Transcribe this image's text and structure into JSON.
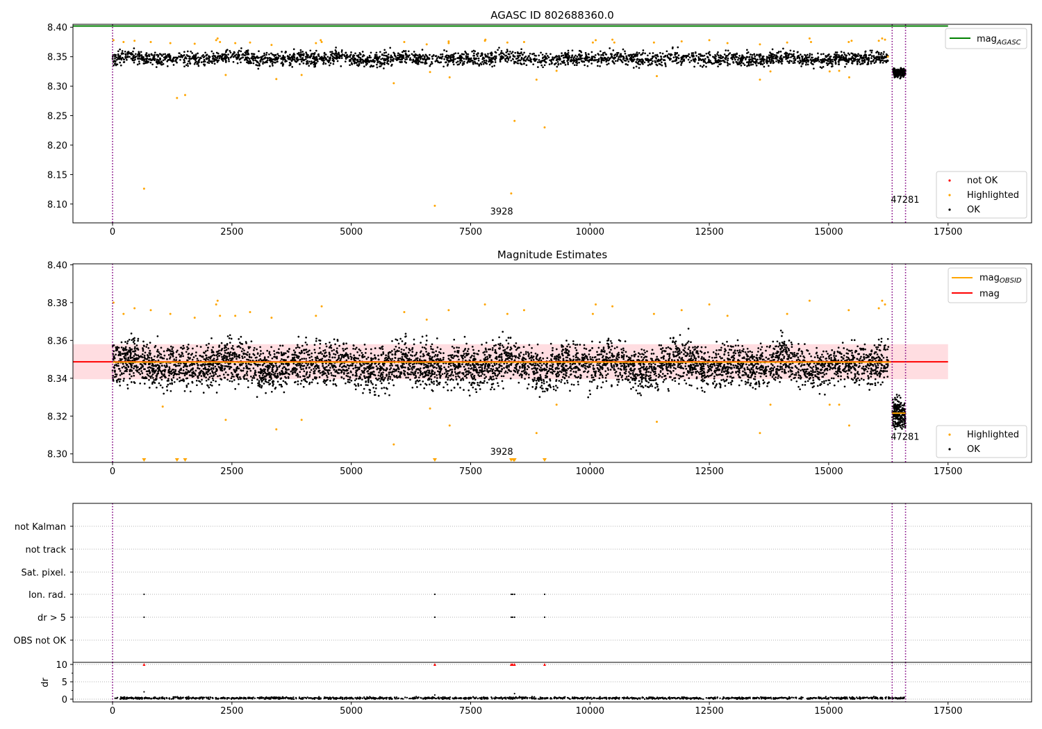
{
  "colors": {
    "ok": "#000000",
    "highlighted": "#ffa500",
    "not_ok": "#ff0000",
    "mag_agasc_line": "#008000",
    "mag_obsid_line": "#ffa500",
    "mag_line": "#ff0000",
    "mag_band": "#ffdde1",
    "obs_boundary": "#800080",
    "flag_grid": "#b0b0b0"
  },
  "chart_data": [
    {
      "type": "scatter",
      "title": "AGASC ID 802688360.0",
      "xlabel": "",
      "ylabel": "",
      "xlim": [
        -830,
        19250
      ],
      "ylim": [
        8.068,
        8.405
      ],
      "x_ticks": [
        "0",
        "2500",
        "5000",
        "7500",
        "10000",
        "12500",
        "15000",
        "17500"
      ],
      "x_tick_values": [
        0,
        2500,
        5000,
        7500,
        10000,
        12500,
        15000,
        17500
      ],
      "y_ticks": [
        "8.10",
        "8.15",
        "8.20",
        "8.25",
        "8.30",
        "8.35",
        "8.40"
      ],
      "y_tick_values": [
        8.1,
        8.15,
        8.2,
        8.25,
        8.3,
        8.35,
        8.4
      ],
      "legend_upper": {
        "position": "upper-right",
        "entries": [
          {
            "label": "mag",
            "subscript": "AGASC",
            "marker": "line",
            "color": "#008000"
          }
        ]
      },
      "legend_lower": {
        "position": "lower-right",
        "entries": [
          {
            "label": "not OK",
            "marker": "dot",
            "color": "#ff0000"
          },
          {
            "label": "Highlighted",
            "marker": "dot",
            "color": "#ffa500"
          },
          {
            "label": "OK",
            "marker": "dot",
            "color": "#000000"
          }
        ]
      },
      "hlines": [
        {
          "y": 8.402,
          "color": "#008000",
          "x_from": -830,
          "x_to": 17500
        }
      ],
      "vlines": [
        0,
        16330,
        16610
      ],
      "annotations": [
        {
          "text": "3928",
          "x": 8150,
          "y": 8.082
        },
        {
          "text": "47281",
          "x": 16600,
          "y": 8.102
        }
      ],
      "ok_band": {
        "segments": [
          {
            "x_from": 0,
            "x_to": 16250,
            "center": 8.347,
            "half_width": 0.013
          },
          {
            "x_from": 16330,
            "x_to": 16610,
            "center": 8.322,
            "half_width": 0.008
          }
        ]
      },
      "highlighted_points": [
        [
          660,
          8.126
        ],
        [
          1350,
          8.28
        ],
        [
          1520,
          8.285
        ],
        [
          2370,
          8.319
        ],
        [
          3430,
          8.312
        ],
        [
          3960,
          8.319
        ],
        [
          5890,
          8.305
        ],
        [
          6650,
          8.324
        ],
        [
          6750,
          8.097
        ],
        [
          7060,
          8.315
        ],
        [
          8350,
          8.118
        ],
        [
          8420,
          8.241
        ],
        [
          8880,
          8.311
        ],
        [
          9050,
          8.23
        ],
        [
          9300,
          8.326
        ],
        [
          11400,
          8.317
        ],
        [
          13560,
          8.311
        ],
        [
          13780,
          8.325
        ],
        [
          15020,
          8.325
        ],
        [
          15430,
          8.315
        ],
        [
          15220,
          8.326
        ],
        [
          20,
          8.378
        ],
        [
          230,
          8.375
        ],
        [
          460,
          8.377
        ],
        [
          800,
          8.375
        ],
        [
          1210,
          8.373
        ],
        [
          1720,
          8.372
        ],
        [
          2170,
          8.378
        ],
        [
          2200,
          8.381
        ],
        [
          2250,
          8.375
        ],
        [
          2570,
          8.373
        ],
        [
          2880,
          8.374
        ],
        [
          3330,
          8.37
        ],
        [
          4260,
          8.373
        ],
        [
          4360,
          8.378
        ],
        [
          4380,
          8.375
        ],
        [
          6110,
          8.375
        ],
        [
          6580,
          8.371
        ],
        [
          7040,
          8.376
        ],
        [
          7040,
          8.373
        ],
        [
          7800,
          8.377
        ],
        [
          7810,
          8.379
        ],
        [
          8270,
          8.374
        ],
        [
          8620,
          8.375
        ],
        [
          10060,
          8.374
        ],
        [
          10120,
          8.378
        ],
        [
          10470,
          8.379
        ],
        [
          10510,
          8.374
        ],
        [
          11340,
          8.374
        ],
        [
          11920,
          8.376
        ],
        [
          12500,
          8.378
        ],
        [
          12880,
          8.373
        ],
        [
          13560,
          8.371
        ],
        [
          14130,
          8.374
        ],
        [
          14600,
          8.381
        ],
        [
          14630,
          8.375
        ],
        [
          15420,
          8.375
        ],
        [
          15480,
          8.377
        ],
        [
          16050,
          8.377
        ],
        [
          16120,
          8.381
        ],
        [
          16180,
          8.379
        ],
        [
          16240,
          8.35
        ]
      ]
    },
    {
      "type": "scatter",
      "title": "Magnitude Estimates",
      "xlabel": "",
      "ylabel": "",
      "xlim": [
        -830,
        19250
      ],
      "ylim": [
        8.2955,
        8.4005
      ],
      "x_ticks": [
        "0",
        "2500",
        "5000",
        "7500",
        "10000",
        "12500",
        "15000",
        "17500"
      ],
      "x_tick_values": [
        0,
        2500,
        5000,
        7500,
        10000,
        12500,
        15000,
        17500
      ],
      "y_ticks": [
        "8.30",
        "8.32",
        "8.34",
        "8.36",
        "8.38",
        "8.40"
      ],
      "y_tick_values": [
        8.3,
        8.32,
        8.34,
        8.36,
        8.38,
        8.4
      ],
      "legend_upper": {
        "position": "upper-right",
        "entries": [
          {
            "label": "mag",
            "subscript": "OBSID",
            "marker": "line",
            "color": "#ffa500"
          },
          {
            "label": "mag",
            "marker": "line",
            "color": "#ff0000"
          }
        ]
      },
      "legend_lower": {
        "position": "lower-right",
        "entries": [
          {
            "label": "Highlighted",
            "marker": "dot",
            "color": "#ffa500"
          },
          {
            "label": "OK",
            "marker": "dot",
            "color": "#000000"
          }
        ]
      },
      "mag": 8.3487,
      "mag_band": [
        8.3395,
        8.358
      ],
      "mag_band_x": [
        -830,
        17500
      ],
      "mag_obsid_segments": [
        {
          "x_from": 0,
          "x_to": 16300,
          "y": 8.3485
        },
        {
          "x_from": 16330,
          "x_to": 16610,
          "y": 8.3215
        }
      ],
      "vlines": [
        0,
        16330,
        16610
      ],
      "annotations": [
        {
          "text": "3928",
          "x": 8150,
          "y": 8.2995
        },
        {
          "text": "47281",
          "x": 16600,
          "y": 8.3075
        }
      ],
      "ok_band": {
        "segments": [
          {
            "x_from": 0,
            "x_to": 16250,
            "center": 8.347,
            "half_width": 0.0125
          },
          {
            "x_from": 16330,
            "x_to": 16610,
            "center": 8.32,
            "half_width": 0.009
          }
        ]
      },
      "highlighted_points": [
        [
          20,
          8.38
        ],
        [
          230,
          8.374
        ],
        [
          460,
          8.377
        ],
        [
          800,
          8.376
        ],
        [
          1050,
          8.325
        ],
        [
          1210,
          8.374
        ],
        [
          1720,
          8.372
        ],
        [
          2170,
          8.379
        ],
        [
          2200,
          8.381
        ],
        [
          2250,
          8.373
        ],
        [
          2370,
          8.318
        ],
        [
          2570,
          8.373
        ],
        [
          2880,
          8.375
        ],
        [
          3330,
          8.372
        ],
        [
          3430,
          8.313
        ],
        [
          3960,
          8.318
        ],
        [
          4260,
          8.373
        ],
        [
          4380,
          8.378
        ],
        [
          5890,
          8.305
        ],
        [
          6110,
          8.375
        ],
        [
          6580,
          8.371
        ],
        [
          6650,
          8.324
        ],
        [
          7040,
          8.376
        ],
        [
          7060,
          8.315
        ],
        [
          7800,
          8.379
        ],
        [
          8270,
          8.374
        ],
        [
          8620,
          8.376
        ],
        [
          8880,
          8.311
        ],
        [
          9300,
          8.326
        ],
        [
          10060,
          8.374
        ],
        [
          10120,
          8.379
        ],
        [
          10470,
          8.378
        ],
        [
          11340,
          8.374
        ],
        [
          11400,
          8.317
        ],
        [
          11920,
          8.376
        ],
        [
          12500,
          8.379
        ],
        [
          12880,
          8.373
        ],
        [
          13560,
          8.311
        ],
        [
          13780,
          8.326
        ],
        [
          14130,
          8.374
        ],
        [
          14600,
          8.381
        ],
        [
          15020,
          8.326
        ],
        [
          15220,
          8.326
        ],
        [
          15420,
          8.376
        ],
        [
          15430,
          8.315
        ],
        [
          16050,
          8.377
        ],
        [
          16120,
          8.381
        ],
        [
          16180,
          8.379
        ]
      ],
      "offscale_low_points": [
        660,
        1350,
        1520,
        6750,
        8350,
        8400,
        8420,
        9050
      ]
    },
    {
      "type": "scatter",
      "title": "",
      "xlabel": "",
      "ylabel": "",
      "xlim": [
        -830,
        19250
      ],
      "flag_rows": [
        "not Kalman",
        "not track",
        "Sat. pixel.",
        "Ion. rad.",
        "dr > 5",
        "OBS not OK"
      ],
      "flag_points": {
        "Ion. rad.": [
          660,
          6750,
          8350,
          8380,
          8420,
          9050
        ],
        "dr > 5": [
          660,
          6750,
          8350,
          8380,
          8420,
          9050
        ]
      },
      "vlines": [
        0,
        16330,
        16610
      ]
    },
    {
      "type": "scatter",
      "title": "",
      "xlabel": "",
      "ylabel": "dr",
      "xlim": [
        -830,
        19250
      ],
      "ylim": [
        -0.8,
        10.6
      ],
      "x_ticks": [
        "0",
        "2500",
        "5000",
        "7500",
        "10000",
        "12500",
        "15000",
        "17500"
      ],
      "x_tick_values": [
        0,
        2500,
        5000,
        7500,
        10000,
        12500,
        15000,
        17500
      ],
      "y_ticks": [
        "0",
        "5",
        "10"
      ],
      "y_tick_values": [
        0,
        5,
        10
      ],
      "clipped_points": [
        660,
        6750,
        8350,
        8380,
        8420,
        9050
      ],
      "outlier_points": [
        [
          660,
          2.1
        ],
        [
          6750,
          1.2
        ],
        [
          8420,
          1.6
        ]
      ],
      "ok_band": {
        "x_from": 0,
        "x_to": 16610,
        "center": 0.3,
        "half_width": 0.3
      },
      "vlines": [
        0,
        16330,
        16610
      ]
    }
  ]
}
